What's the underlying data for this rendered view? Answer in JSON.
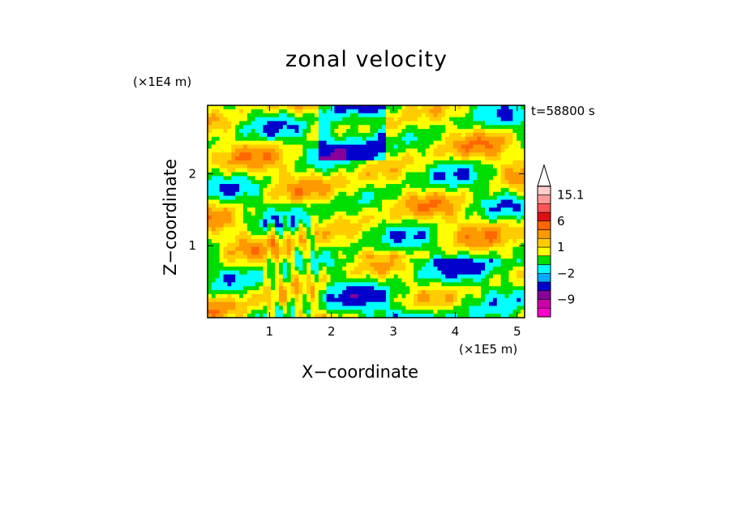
{
  "chart_data": {
    "type": "heatmap",
    "title": "zonal velocity",
    "xlabel": "X−coordinate",
    "ylabel": "Z−coordinate",
    "x_unit": "(×1E5 m)",
    "z_unit": "(×1E4 m)",
    "timestamp": "t=58800 s",
    "xlim": [
      0,
      5.12
    ],
    "ylim": [
      0,
      2.95
    ],
    "x_ticks": [
      {
        "value": 1,
        "label": "1"
      },
      {
        "value": 2,
        "label": "2"
      },
      {
        "value": 3,
        "label": "3"
      },
      {
        "value": 4,
        "label": "4"
      },
      {
        "value": 5,
        "label": "5"
      }
    ],
    "y_ticks": [
      {
        "value": 1,
        "label": "1"
      },
      {
        "value": 2,
        "label": "2"
      }
    ],
    "colorbar": {
      "levels": [
        {
          "color": "#ff00cc"
        },
        {
          "color": "#cc00aa"
        },
        {
          "color": "#880099"
        },
        {
          "color": "#0000cc"
        },
        {
          "color": "#00aaff"
        },
        {
          "color": "#00ffff"
        },
        {
          "color": "#00dd00"
        },
        {
          "color": "#ffff00"
        },
        {
          "color": "#ffcc00"
        },
        {
          "color": "#ff9900"
        },
        {
          "color": "#ff6600"
        },
        {
          "color": "#dd1111"
        },
        {
          "color": "#ff5555"
        },
        {
          "color": "#ff9999"
        },
        {
          "color": "#ffcccc"
        },
        {
          "color": "#ffffff"
        }
      ],
      "labels": [
        {
          "label": "15.1",
          "after_band": 14
        },
        {
          "label": "6",
          "after_band": 11
        },
        {
          "label": "1",
          "after_band": 8
        },
        {
          "label": "−2",
          "after_band": 5
        },
        {
          "label": "−9",
          "after_band": 2
        }
      ]
    }
  }
}
